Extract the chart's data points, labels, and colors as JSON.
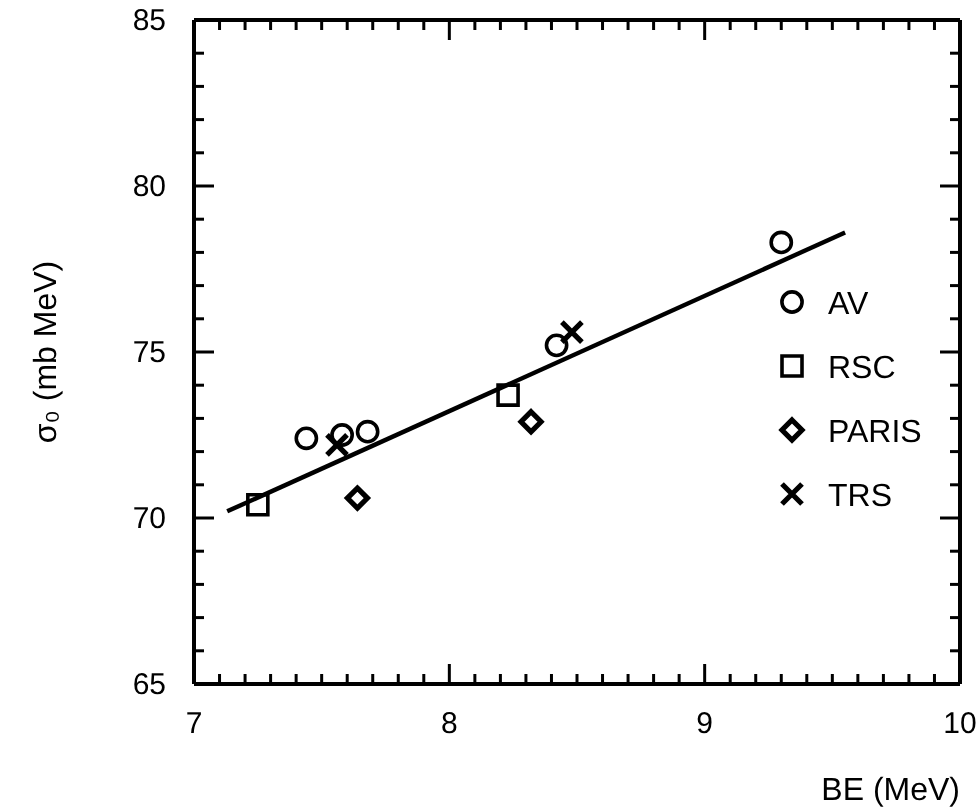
{
  "chart_data": {
    "type": "scatter",
    "xlabel": "BE (MeV)",
    "ylabel": "σ₀ (mb MeV)",
    "xlim": [
      7,
      10
    ],
    "ylim": [
      65,
      85
    ],
    "xticks": [
      7,
      {
        "value": 7.1,
        "label": null
      },
      {
        "value": 7.2,
        "label": null
      },
      {
        "value": 7.3,
        "label": null
      },
      {
        "value": 7.4,
        "label": null
      },
      {
        "value": 7.5,
        "label": null
      },
      {
        "value": 7.6,
        "label": null
      },
      {
        "value": 7.7,
        "label": null
      },
      {
        "value": 7.8,
        "label": null
      },
      {
        "value": 7.9,
        "label": null
      },
      8,
      {
        "value": 8.1,
        "label": null
      },
      {
        "value": 8.2,
        "label": null
      },
      {
        "value": 8.3,
        "label": null
      },
      {
        "value": 8.4,
        "label": null
      },
      {
        "value": 8.5,
        "label": null
      },
      {
        "value": 8.6,
        "label": null
      },
      {
        "value": 8.7,
        "label": null
      },
      {
        "value": 8.8,
        "label": null
      },
      {
        "value": 8.9,
        "label": null
      },
      9,
      {
        "value": 9.1,
        "label": null
      },
      {
        "value": 9.2,
        "label": null
      },
      {
        "value": 9.3,
        "label": null
      },
      {
        "value": 9.4,
        "label": null
      },
      {
        "value": 9.5,
        "label": null
      },
      {
        "value": 9.6,
        "label": null
      },
      {
        "value": 9.7,
        "label": null
      },
      {
        "value": 9.8,
        "label": null
      },
      {
        "value": 9.9,
        "label": null
      },
      10
    ],
    "yticks": [
      65,
      {
        "value": 66,
        "label": null
      },
      {
        "value": 67,
        "label": null
      },
      {
        "value": 68,
        "label": null
      },
      {
        "value": 69,
        "label": null
      },
      70,
      {
        "value": 71,
        "label": null
      },
      {
        "value": 72,
        "label": null
      },
      {
        "value": 73,
        "label": null
      },
      {
        "value": 74,
        "label": null
      },
      75,
      {
        "value": 76,
        "label": null
      },
      {
        "value": 77,
        "label": null
      },
      {
        "value": 78,
        "label": null
      },
      {
        "value": 79,
        "label": null
      },
      80,
      {
        "value": 81,
        "label": null
      },
      {
        "value": 82,
        "label": null
      },
      {
        "value": 83,
        "label": null
      },
      {
        "value": 84,
        "label": null
      },
      85
    ],
    "grid": false,
    "legend": "right",
    "series": [
      {
        "name": "AV",
        "color": "#000000",
        "marker": "circle",
        "x": [
          7.44,
          7.58,
          7.68,
          8.42,
          9.3
        ],
        "values": [
          72.4,
          72.5,
          72.6,
          75.2,
          78.3
        ]
      },
      {
        "name": "RSC",
        "color": "#000000",
        "marker": "square",
        "x": [
          7.25,
          8.23
        ],
        "values": [
          70.4,
          73.7
        ]
      },
      {
        "name": "PARIS",
        "color": "#000000",
        "marker": "diamond",
        "x": [
          7.64,
          8.32
        ],
        "values": [
          70.6,
          72.9
        ]
      },
      {
        "name": "TRS",
        "color": "#000000",
        "marker": "cross",
        "x": [
          7.56,
          8.48
        ],
        "values": [
          72.2,
          75.6
        ]
      },
      {
        "type": "line",
        "color": "#000000",
        "marker": "none",
        "line_style": "solid",
        "x": [
          7.13,
          9.55
        ],
        "values": [
          70.2,
          78.6
        ]
      }
    ]
  }
}
